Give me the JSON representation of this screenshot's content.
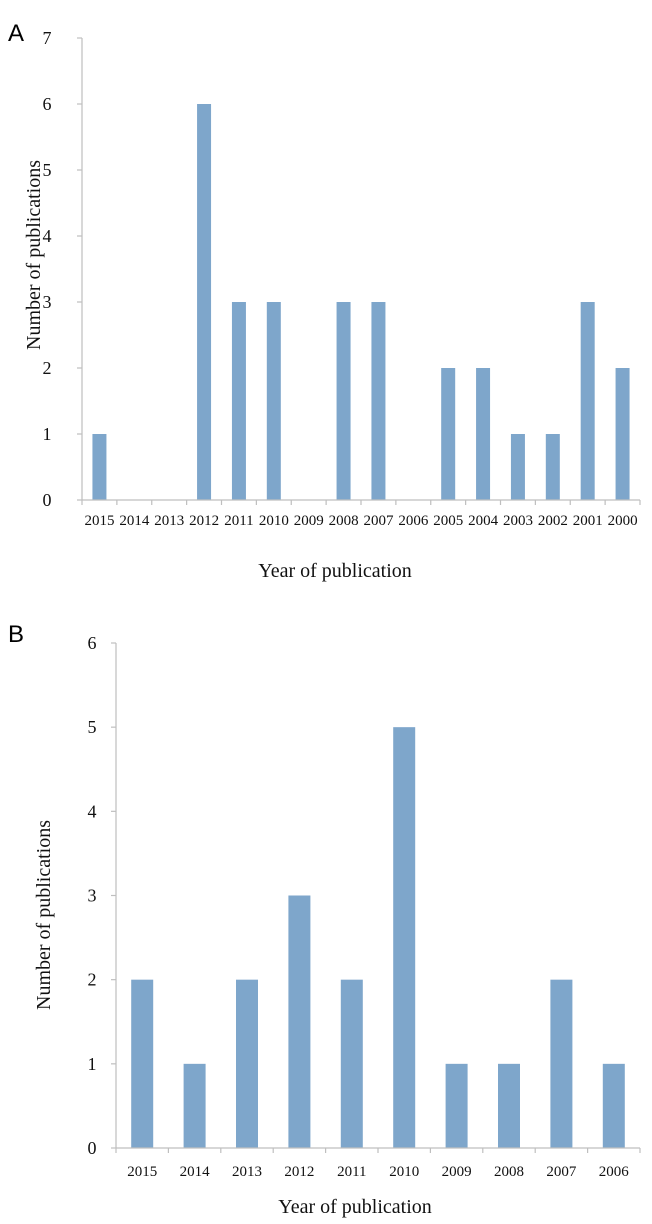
{
  "colors": {
    "bar": "#7ea6cb",
    "axis": "#bfbfbf"
  },
  "chart_data": [
    {
      "panel": "A",
      "type": "bar",
      "categories": [
        "2015",
        "2014",
        "2013",
        "2012",
        "2011",
        "2010",
        "2009",
        "2008",
        "2007",
        "2006",
        "2005",
        "2004",
        "2003",
        "2002",
        "2001",
        "2000"
      ],
      "values": [
        1,
        0,
        0,
        6,
        3,
        3,
        0,
        3,
        3,
        0,
        2,
        2,
        1,
        1,
        3,
        2
      ],
      "xlabel": "Year of publication",
      "ylabel": "Number of publications",
      "ylim": [
        0,
        7
      ],
      "yticks": [
        "0",
        "1",
        "2",
        "3",
        "4",
        "5",
        "6",
        "7"
      ],
      "grid": false,
      "legend": "none"
    },
    {
      "panel": "B",
      "type": "bar",
      "categories": [
        "2015",
        "2014",
        "2013",
        "2012",
        "2011",
        "2010",
        "2009",
        "2008",
        "2007",
        "2006"
      ],
      "values": [
        2,
        1,
        2,
        3,
        2,
        5,
        1,
        1,
        2,
        1
      ],
      "xlabel": "Year of publication",
      "ylabel": "Number of publications",
      "ylim": [
        0,
        6
      ],
      "yticks": [
        "0",
        "1",
        "2",
        "3",
        "4",
        "5",
        "6"
      ],
      "grid": false,
      "legend": "none"
    }
  ]
}
